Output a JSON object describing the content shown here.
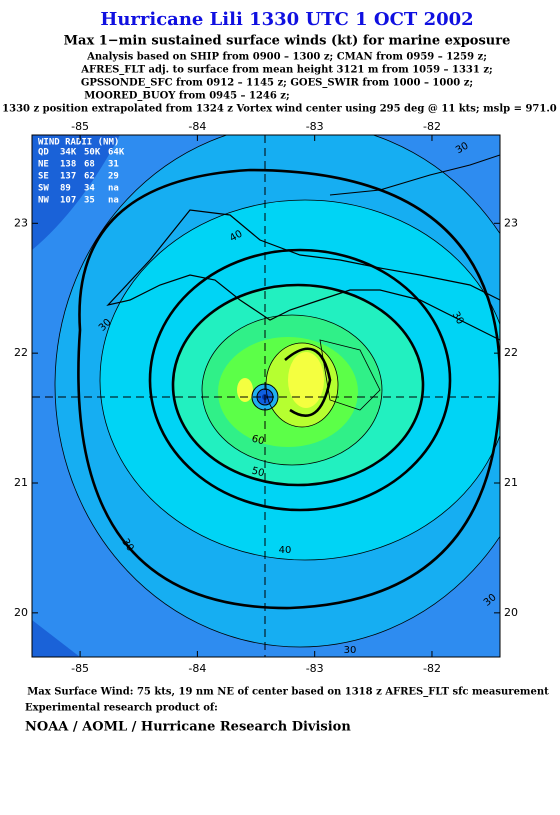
{
  "header": {
    "title": "Hurricane Lili 1330 UTC 1 OCT 2002",
    "subtitle": "Max 1−min sustained surface winds (kt) for marine exposure",
    "lines": [
      "Analysis based on  SHIP from 0900 – 1300 z;  CMAN from 0959 – 1259 z;",
      "AFRES_FLT adj. to surface from mean height 3121 m from 1059 – 1331 z;",
      "GPSSONDE_SFC from 0912 – 1145 z;  GOES_SWIR from 1000 – 1000 z;",
      "MOORED_BUOY from 0945 – 1246 z;"
    ],
    "position_note": "1330 z position extrapolated from 1324 z Vortex wind center using 295 deg @ 11 kts; mslp = 971.0 mb"
  },
  "map": {
    "xlim": [
      -85.41,
      -81.42
    ],
    "ylim": [
      19.66,
      23.68
    ],
    "xticks": [
      -85,
      -84,
      -83,
      -82
    ],
    "yticks": [
      20,
      21,
      22,
      23
    ]
  },
  "wind_radii": {
    "title": "WIND RADII (NM)",
    "columns": [
      "QD",
      "34K",
      "50K",
      "64K"
    ],
    "rows": [
      [
        "NE",
        138,
        68,
        31
      ],
      [
        "SE",
        137,
        62,
        29
      ],
      [
        "SW",
        89,
        34,
        "na"
      ],
      [
        "NW",
        107,
        35,
        "na"
      ]
    ]
  },
  "contour_labels": [
    "30",
    "40",
    "30",
    "30",
    "50",
    "60",
    "30",
    "40",
    "30",
    "30"
  ],
  "footer": {
    "max_wind": "Max Surface Wind: 75 kts, 19 nm NE of center based on 1318 z AFRES_FLT sfc measurement",
    "credit": "Experimental research product of:",
    "org": "NOAA / AOML / Hurricane Research Division"
  }
}
